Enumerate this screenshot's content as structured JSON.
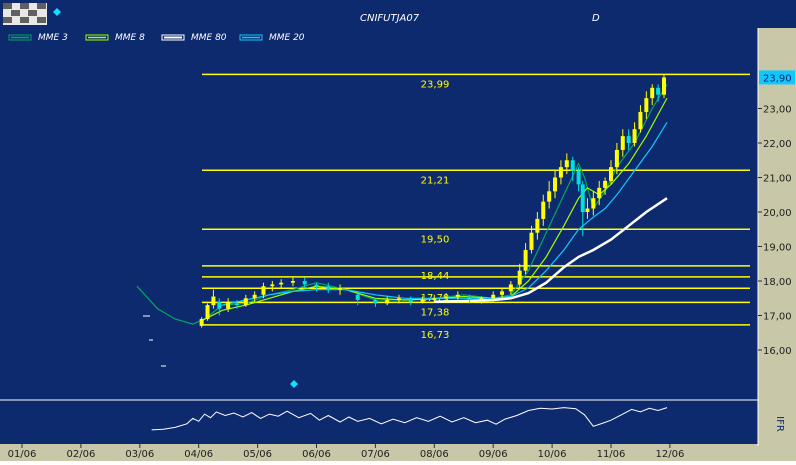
{
  "chart_title": "CNIFUTJA07",
  "period": "D",
  "legend": [
    {
      "label": "MME  3",
      "color": "#00a860"
    },
    {
      "label": "MME  8",
      "color": "#9aff00"
    },
    {
      "label": "MME 80",
      "color": "#ffffff"
    },
    {
      "label": "MME 20",
      "color": "#10c8ff"
    }
  ],
  "colors": {
    "background": "#0e2a6e",
    "axis_panel": "#c8c8a8",
    "levels": "#ffff00",
    "candles_up": "#ffff00",
    "candles_down": "#00e0e0",
    "last_price_box": "#10c8ff"
  },
  "oscillator_label": "IFR",
  "chart_data": {
    "type": "candlestick",
    "title": "CNIFUTJA07",
    "ylim": [
      15.6,
      24.9
    ],
    "yticks": [
      "23,00",
      "22,00",
      "21,00",
      "20,00",
      "19,00",
      "18,00",
      "17,00",
      "16,00"
    ],
    "ytick_values": [
      23,
      22,
      21,
      20,
      19,
      18,
      17,
      16
    ],
    "last_price": "23,90",
    "last_price_value": 23.9,
    "xticks": [
      "01/06",
      "02/06",
      "03/06",
      "04/06",
      "05/06",
      "06/06",
      "07/06",
      "08/06",
      "09/06",
      "10/06",
      "11/06",
      "12/06"
    ],
    "levels": [
      {
        "label": "23,99",
        "value": 23.99
      },
      {
        "label": "21,21",
        "value": 21.21
      },
      {
        "label": "19,50",
        "value": 19.5
      },
      {
        "label": "18,44",
        "value": 18.44
      },
      {
        "label": "17,79",
        "value": 17.79
      },
      {
        "label": "17,38",
        "value": 17.38
      },
      {
        "label": "16,73",
        "value": 16.73
      }
    ],
    "extra_level_values": [
      18.12
    ],
    "series": [
      {
        "name": "MME 3",
        "color": "#00a860",
        "points": [
          [
            2.95,
            17.85
          ],
          [
            3.3,
            17.2
          ],
          [
            3.6,
            16.9
          ],
          [
            3.9,
            16.75
          ],
          [
            4.1,
            16.9
          ],
          [
            4.4,
            17.3
          ],
          [
            4.8,
            17.35
          ],
          [
            5.2,
            17.6
          ],
          [
            5.6,
            17.75
          ],
          [
            6.0,
            17.95
          ],
          [
            6.5,
            17.75
          ],
          [
            7.0,
            17.45
          ],
          [
            7.5,
            17.45
          ],
          [
            8.0,
            17.5
          ],
          [
            8.5,
            17.6
          ],
          [
            9.0,
            17.5
          ],
          [
            9.3,
            17.6
          ],
          [
            9.6,
            18.3
          ],
          [
            9.9,
            19.4
          ],
          [
            10.2,
            20.5
          ],
          [
            10.45,
            21.4
          ],
          [
            10.55,
            21.0
          ],
          [
            10.7,
            20.1
          ],
          [
            10.9,
            20.6
          ],
          [
            11.1,
            21.3
          ],
          [
            11.4,
            22.0
          ],
          [
            11.7,
            23.0
          ],
          [
            11.95,
            23.7
          ]
        ]
      },
      {
        "name": "MME 8",
        "color": "#9aff00",
        "points": [
          [
            4.05,
            16.85
          ],
          [
            4.4,
            17.15
          ],
          [
            4.8,
            17.3
          ],
          [
            5.2,
            17.5
          ],
          [
            5.6,
            17.7
          ],
          [
            6.0,
            17.85
          ],
          [
            6.5,
            17.75
          ],
          [
            7.0,
            17.5
          ],
          [
            7.5,
            17.45
          ],
          [
            8.0,
            17.48
          ],
          [
            8.5,
            17.55
          ],
          [
            9.0,
            17.5
          ],
          [
            9.3,
            17.55
          ],
          [
            9.6,
            18.0
          ],
          [
            9.9,
            18.7
          ],
          [
            10.2,
            19.6
          ],
          [
            10.45,
            20.4
          ],
          [
            10.6,
            20.7
          ],
          [
            10.8,
            20.5
          ],
          [
            11.0,
            20.8
          ],
          [
            11.3,
            21.4
          ],
          [
            11.6,
            22.2
          ],
          [
            11.95,
            23.3
          ]
        ]
      },
      {
        "name": "MME 20",
        "color": "#10c8ff",
        "points": [
          [
            4.4,
            17.3
          ],
          [
            4.8,
            17.45
          ],
          [
            5.2,
            17.6
          ],
          [
            5.6,
            17.7
          ],
          [
            6.0,
            17.75
          ],
          [
            6.5,
            17.75
          ],
          [
            7.0,
            17.6
          ],
          [
            7.5,
            17.5
          ],
          [
            8.0,
            17.5
          ],
          [
            8.5,
            17.5
          ],
          [
            9.0,
            17.5
          ],
          [
            9.3,
            17.55
          ],
          [
            9.6,
            17.8
          ],
          [
            9.9,
            18.3
          ],
          [
            10.2,
            18.9
          ],
          [
            10.45,
            19.5
          ],
          [
            10.7,
            19.85
          ],
          [
            10.9,
            20.1
          ],
          [
            11.1,
            20.5
          ],
          [
            11.4,
            21.2
          ],
          [
            11.7,
            21.9
          ],
          [
            11.95,
            22.6
          ]
        ]
      },
      {
        "name": "MME 80",
        "color": "#ffffff",
        "points": [
          [
            8.0,
            17.4
          ],
          [
            8.5,
            17.42
          ],
          [
            9.0,
            17.45
          ],
          [
            9.3,
            17.5
          ],
          [
            9.6,
            17.65
          ],
          [
            9.9,
            17.95
          ],
          [
            10.2,
            18.4
          ],
          [
            10.45,
            18.7
          ],
          [
            10.7,
            18.9
          ],
          [
            11.0,
            19.2
          ],
          [
            11.3,
            19.6
          ],
          [
            11.6,
            20.0
          ],
          [
            11.95,
            20.4
          ]
        ]
      }
    ],
    "candles": [
      [
        4.05,
        16.7,
        16.9,
        16.65,
        16.95
      ],
      [
        4.15,
        16.9,
        17.3,
        16.85,
        17.35
      ],
      [
        4.25,
        17.3,
        17.55,
        17.2,
        17.75
      ],
      [
        4.35,
        17.4,
        17.2,
        17.0,
        17.5
      ],
      [
        4.5,
        17.2,
        17.4,
        17.1,
        17.5
      ],
      [
        4.65,
        17.35,
        17.3,
        17.2,
        17.45
      ],
      [
        4.8,
        17.3,
        17.5,
        17.25,
        17.6
      ],
      [
        4.95,
        17.5,
        17.6,
        17.4,
        17.7
      ],
      [
        5.1,
        17.6,
        17.85,
        17.5,
        17.95
      ],
      [
        5.25,
        17.85,
        17.9,
        17.7,
        18.0
      ],
      [
        5.4,
        17.9,
        17.95,
        17.8,
        18.05
      ],
      [
        5.6,
        17.95,
        18.0,
        17.85,
        18.1
      ],
      [
        5.8,
        18.0,
        17.9,
        17.8,
        18.1
      ],
      [
        6.0,
        17.9,
        17.85,
        17.7,
        17.95
      ],
      [
        6.2,
        17.85,
        17.75,
        17.65,
        17.95
      ],
      [
        6.4,
        17.75,
        17.8,
        17.6,
        17.9
      ],
      [
        6.7,
        17.6,
        17.45,
        17.3,
        17.7
      ],
      [
        7.0,
        17.45,
        17.35,
        17.25,
        17.5
      ],
      [
        7.2,
        17.35,
        17.45,
        17.3,
        17.55
      ],
      [
        7.4,
        17.45,
        17.5,
        17.35,
        17.6
      ],
      [
        7.6,
        17.5,
        17.4,
        17.3,
        17.55
      ],
      [
        7.8,
        17.4,
        17.45,
        17.35,
        17.55
      ],
      [
        8.0,
        17.45,
        17.5,
        17.4,
        17.6
      ],
      [
        8.2,
        17.5,
        17.55,
        17.4,
        17.65
      ],
      [
        8.4,
        17.55,
        17.6,
        17.45,
        17.7
      ],
      [
        8.6,
        17.55,
        17.45,
        17.35,
        17.6
      ],
      [
        8.8,
        17.45,
        17.5,
        17.35,
        17.55
      ],
      [
        9.0,
        17.5,
        17.6,
        17.4,
        17.7
      ],
      [
        9.15,
        17.6,
        17.7,
        17.5,
        17.8
      ],
      [
        9.3,
        17.7,
        17.9,
        17.6,
        18.0
      ],
      [
        9.45,
        17.9,
        18.3,
        17.8,
        18.5
      ],
      [
        9.55,
        18.3,
        18.9,
        18.2,
        19.1
      ],
      [
        9.65,
        18.9,
        19.4,
        18.8,
        19.6
      ],
      [
        9.75,
        19.4,
        19.8,
        19.2,
        20.0
      ],
      [
        9.85,
        19.8,
        20.3,
        19.6,
        20.5
      ],
      [
        9.95,
        20.3,
        20.6,
        20.1,
        20.9
      ],
      [
        10.05,
        20.6,
        21.0,
        20.4,
        21.2
      ],
      [
        10.15,
        21.0,
        21.3,
        20.8,
        21.5
      ],
      [
        10.25,
        21.3,
        21.5,
        21.1,
        21.7
      ],
      [
        10.35,
        21.5,
        21.2,
        20.9,
        21.6
      ],
      [
        10.45,
        21.2,
        20.8,
        20.6,
        21.3
      ],
      [
        10.52,
        20.8,
        20.0,
        19.3,
        20.9
      ],
      [
        10.6,
        20.0,
        20.1,
        19.8,
        20.4
      ],
      [
        10.7,
        20.1,
        20.4,
        19.9,
        20.6
      ],
      [
        10.8,
        20.4,
        20.7,
        20.2,
        20.9
      ],
      [
        10.9,
        20.7,
        20.9,
        20.5,
        21.0
      ],
      [
        11.0,
        20.9,
        21.3,
        20.8,
        21.5
      ],
      [
        11.1,
        21.3,
        21.8,
        21.1,
        22.0
      ],
      [
        11.2,
        21.8,
        22.2,
        21.6,
        22.4
      ],
      [
        11.3,
        22.2,
        22.0,
        21.8,
        22.4
      ],
      [
        11.4,
        22.0,
        22.4,
        21.9,
        22.6
      ],
      [
        11.5,
        22.4,
        22.9,
        22.3,
        23.1
      ],
      [
        11.6,
        22.9,
        23.3,
        22.7,
        23.5
      ],
      [
        11.7,
        23.3,
        23.6,
        23.1,
        23.7
      ],
      [
        11.8,
        23.6,
        23.4,
        23.2,
        23.7
      ],
      [
        11.9,
        23.4,
        23.9,
        23.3,
        24.0
      ]
    ],
    "ifr_ylim": [
      0,
      100
    ],
    "ifr": [
      [
        3.2,
        28
      ],
      [
        3.4,
        30
      ],
      [
        3.6,
        35
      ],
      [
        3.8,
        45
      ],
      [
        3.9,
        60
      ],
      [
        4.0,
        52
      ],
      [
        4.1,
        72
      ],
      [
        4.2,
        62
      ],
      [
        4.3,
        78
      ],
      [
        4.45,
        68
      ],
      [
        4.6,
        75
      ],
      [
        4.75,
        64
      ],
      [
        4.9,
        76
      ],
      [
        5.05,
        60
      ],
      [
        5.2,
        72
      ],
      [
        5.35,
        66
      ],
      [
        5.5,
        80
      ],
      [
        5.7,
        62
      ],
      [
        5.9,
        74
      ],
      [
        6.05,
        55
      ],
      [
        6.2,
        68
      ],
      [
        6.4,
        50
      ],
      [
        6.55,
        64
      ],
      [
        6.7,
        52
      ],
      [
        6.9,
        60
      ],
      [
        7.1,
        45
      ],
      [
        7.3,
        58
      ],
      [
        7.5,
        48
      ],
      [
        7.7,
        62
      ],
      [
        7.9,
        52
      ],
      [
        8.1,
        66
      ],
      [
        8.3,
        50
      ],
      [
        8.5,
        62
      ],
      [
        8.7,
        48
      ],
      [
        8.9,
        55
      ],
      [
        9.05,
        44
      ],
      [
        9.2,
        58
      ],
      [
        9.4,
        68
      ],
      [
        9.6,
        82
      ],
      [
        9.8,
        88
      ],
      [
        10.0,
        86
      ],
      [
        10.2,
        90
      ],
      [
        10.4,
        87
      ],
      [
        10.55,
        70
      ],
      [
        10.7,
        38
      ],
      [
        10.85,
        46
      ],
      [
        11.0,
        55
      ],
      [
        11.2,
        72
      ],
      [
        11.35,
        85
      ],
      [
        11.5,
        78
      ],
      [
        11.65,
        88
      ],
      [
        11.8,
        82
      ],
      [
        11.95,
        90
      ]
    ]
  }
}
